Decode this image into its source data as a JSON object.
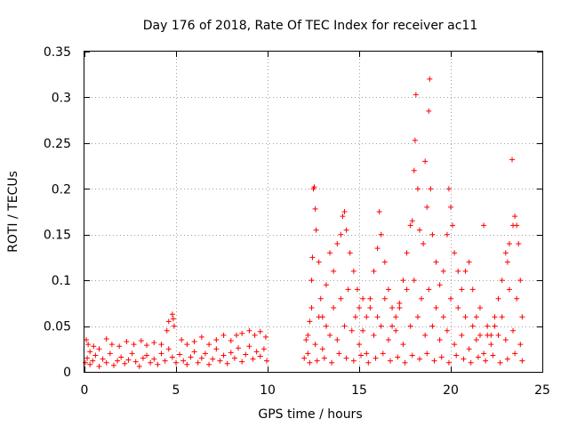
{
  "chart_data": {
    "type": "scatter",
    "title": "Day 176 of 2018, Rate Of TEC Index for receiver ac11",
    "xlabel": "GPS time / hours",
    "ylabel": "ROTI / TECUs",
    "xlim": [
      0,
      25
    ],
    "ylim": [
      0,
      0.35
    ],
    "xticks": [
      0,
      5,
      10,
      15,
      20,
      25
    ],
    "yticks": [
      0,
      0.05,
      0.1,
      0.15,
      0.2,
      0.25,
      0.3,
      0.35
    ],
    "xtick_labels": [
      "0",
      "5",
      "10",
      "15",
      "20",
      "25"
    ],
    "ytick_labels": [
      "0",
      "0.05",
      "0.1",
      "0.15",
      "0.2",
      "0.25",
      "0.3",
      "0.35"
    ],
    "grid": true,
    "marker": "+",
    "color": "#ff0000",
    "series": [
      {
        "name": "ROTI",
        "points": [
          [
            0.1,
            0.035
          ],
          [
            0.2,
            0.03
          ],
          [
            0.3,
            0.022
          ],
          [
            0.5,
            0.028
          ],
          [
            0.8,
            0.025
          ],
          [
            1.2,
            0.036
          ],
          [
            1.5,
            0.03
          ],
          [
            1.9,
            0.028
          ],
          [
            2.3,
            0.033
          ],
          [
            2.7,
            0.03
          ],
          [
            3.1,
            0.034
          ],
          [
            3.4,
            0.029
          ],
          [
            3.8,
            0.032
          ],
          [
            4.2,
            0.03
          ],
          [
            4.5,
            0.045
          ],
          [
            4.6,
            0.055
          ],
          [
            4.8,
            0.063
          ],
          [
            4.85,
            0.058
          ],
          [
            4.9,
            0.05
          ],
          [
            5.3,
            0.035
          ],
          [
            5.6,
            0.03
          ],
          [
            6.0,
            0.033
          ],
          [
            6.4,
            0.038
          ],
          [
            6.8,
            0.03
          ],
          [
            7.2,
            0.035
          ],
          [
            7.6,
            0.04
          ],
          [
            8.0,
            0.034
          ],
          [
            8.3,
            0.04
          ],
          [
            8.6,
            0.042
          ],
          [
            9.0,
            0.045
          ],
          [
            9.3,
            0.04
          ],
          [
            9.6,
            0.044
          ],
          [
            9.9,
            0.038
          ],
          [
            0.05,
            0.01
          ],
          [
            0.15,
            0.015
          ],
          [
            0.3,
            0.008
          ],
          [
            0.45,
            0.012
          ],
          [
            0.6,
            0.018
          ],
          [
            0.8,
            0.006
          ],
          [
            1.0,
            0.014
          ],
          [
            1.2,
            0.01
          ],
          [
            1.4,
            0.02
          ],
          [
            1.6,
            0.007
          ],
          [
            1.8,
            0.012
          ],
          [
            2.0,
            0.016
          ],
          [
            2.2,
            0.009
          ],
          [
            2.4,
            0.013
          ],
          [
            2.6,
            0.02
          ],
          [
            2.8,
            0.011
          ],
          [
            3.0,
            0.006
          ],
          [
            3.2,
            0.015
          ],
          [
            3.4,
            0.018
          ],
          [
            3.6,
            0.01
          ],
          [
            3.8,
            0.014
          ],
          [
            4.0,
            0.008
          ],
          [
            4.2,
            0.02
          ],
          [
            4.4,
            0.012
          ],
          [
            4.6,
            0.025
          ],
          [
            4.8,
            0.016
          ],
          [
            5.0,
            0.01
          ],
          [
            5.2,
            0.019
          ],
          [
            5.4,
            0.012
          ],
          [
            5.6,
            0.008
          ],
          [
            5.8,
            0.016
          ],
          [
            6.0,
            0.022
          ],
          [
            6.2,
            0.01
          ],
          [
            6.4,
            0.015
          ],
          [
            6.6,
            0.02
          ],
          [
            6.8,
            0.008
          ],
          [
            7.0,
            0.014
          ],
          [
            7.2,
            0.025
          ],
          [
            7.4,
            0.012
          ],
          [
            7.6,
            0.018
          ],
          [
            7.8,
            0.009
          ],
          [
            8.0,
            0.021
          ],
          [
            8.2,
            0.015
          ],
          [
            8.4,
            0.026
          ],
          [
            8.6,
            0.011
          ],
          [
            8.8,
            0.019
          ],
          [
            9.0,
            0.028
          ],
          [
            9.2,
            0.014
          ],
          [
            9.4,
            0.022
          ],
          [
            9.6,
            0.017
          ],
          [
            9.8,
            0.025
          ],
          [
            9.95,
            0.012
          ],
          [
            12.0,
            0.015
          ],
          [
            12.1,
            0.035
          ],
          [
            12.2,
            0.04
          ],
          [
            12.3,
            0.055
          ],
          [
            12.4,
            0.1
          ],
          [
            12.45,
            0.125
          ],
          [
            12.5,
            0.2
          ],
          [
            12.55,
            0.202
          ],
          [
            12.6,
            0.178
          ],
          [
            12.65,
            0.155
          ],
          [
            12.8,
            0.12
          ],
          [
            12.9,
            0.08
          ],
          [
            13.0,
            0.06
          ],
          [
            13.2,
            0.095
          ],
          [
            13.4,
            0.13
          ],
          [
            13.6,
            0.11
          ],
          [
            13.8,
            0.14
          ],
          [
            14.0,
            0.15
          ],
          [
            14.1,
            0.17
          ],
          [
            14.2,
            0.175
          ],
          [
            14.3,
            0.155
          ],
          [
            14.5,
            0.13
          ],
          [
            14.7,
            0.11
          ],
          [
            14.9,
            0.09
          ],
          [
            15.0,
            0.07
          ],
          [
            15.2,
            0.045
          ],
          [
            15.4,
            0.06
          ],
          [
            15.6,
            0.08
          ],
          [
            15.8,
            0.11
          ],
          [
            16.0,
            0.135
          ],
          [
            16.1,
            0.175
          ],
          [
            16.2,
            0.15
          ],
          [
            16.4,
            0.12
          ],
          [
            16.6,
            0.09
          ],
          [
            16.8,
            0.07
          ],
          [
            17.0,
            0.06
          ],
          [
            17.2,
            0.075
          ],
          [
            17.4,
            0.1
          ],
          [
            17.6,
            0.13
          ],
          [
            17.8,
            0.16
          ],
          [
            17.9,
            0.165
          ],
          [
            18.0,
            0.22
          ],
          [
            18.05,
            0.253
          ],
          [
            18.1,
            0.303
          ],
          [
            18.2,
            0.2
          ],
          [
            18.3,
            0.155
          ],
          [
            18.5,
            0.14
          ],
          [
            18.6,
            0.23
          ],
          [
            18.7,
            0.18
          ],
          [
            18.8,
            0.285
          ],
          [
            18.85,
            0.32
          ],
          [
            18.9,
            0.2
          ],
          [
            19.0,
            0.15
          ],
          [
            19.2,
            0.12
          ],
          [
            19.4,
            0.095
          ],
          [
            19.6,
            0.11
          ],
          [
            19.8,
            0.15
          ],
          [
            19.9,
            0.2
          ],
          [
            20.0,
            0.18
          ],
          [
            20.1,
            0.16
          ],
          [
            20.2,
            0.13
          ],
          [
            20.4,
            0.11
          ],
          [
            20.6,
            0.09
          ],
          [
            20.8,
            0.11
          ],
          [
            21.0,
            0.12
          ],
          [
            21.2,
            0.09
          ],
          [
            21.4,
            0.06
          ],
          [
            21.6,
            0.04
          ],
          [
            21.8,
            0.16
          ],
          [
            22.0,
            0.05
          ],
          [
            22.2,
            0.04
          ],
          [
            22.4,
            0.06
          ],
          [
            22.6,
            0.08
          ],
          [
            22.8,
            0.1
          ],
          [
            23.0,
            0.13
          ],
          [
            23.1,
            0.12
          ],
          [
            23.2,
            0.14
          ],
          [
            23.35,
            0.232
          ],
          [
            23.4,
            0.16
          ],
          [
            23.5,
            0.17
          ],
          [
            23.6,
            0.16
          ],
          [
            23.7,
            0.14
          ],
          [
            23.8,
            0.1
          ],
          [
            23.9,
            0.06
          ],
          [
            12.2,
            0.02
          ],
          [
            12.6,
            0.03
          ],
          [
            13.0,
            0.025
          ],
          [
            13.4,
            0.04
          ],
          [
            13.8,
            0.035
          ],
          [
            14.2,
            0.05
          ],
          [
            14.6,
            0.045
          ],
          [
            15.0,
            0.03
          ],
          [
            15.4,
            0.02
          ],
          [
            15.8,
            0.04
          ],
          [
            16.2,
            0.05
          ],
          [
            16.6,
            0.035
          ],
          [
            17.0,
            0.045
          ],
          [
            17.4,
            0.03
          ],
          [
            17.8,
            0.05
          ],
          [
            18.2,
            0.06
          ],
          [
            18.6,
            0.04
          ],
          [
            19.0,
            0.05
          ],
          [
            19.4,
            0.035
          ],
          [
            19.8,
            0.045
          ],
          [
            20.2,
            0.03
          ],
          [
            20.6,
            0.04
          ],
          [
            21.0,
            0.025
          ],
          [
            21.4,
            0.035
          ],
          [
            21.8,
            0.02
          ],
          [
            22.2,
            0.03
          ],
          [
            22.6,
            0.04
          ],
          [
            23.0,
            0.035
          ],
          [
            23.4,
            0.045
          ],
          [
            23.8,
            0.03
          ],
          [
            12.4,
            0.07
          ],
          [
            12.8,
            0.06
          ],
          [
            13.2,
            0.05
          ],
          [
            13.6,
            0.07
          ],
          [
            14.0,
            0.08
          ],
          [
            14.4,
            0.09
          ],
          [
            14.8,
            0.06
          ],
          [
            15.2,
            0.08
          ],
          [
            15.6,
            0.07
          ],
          [
            16.0,
            0.06
          ],
          [
            16.4,
            0.08
          ],
          [
            16.8,
            0.05
          ],
          [
            17.2,
            0.07
          ],
          [
            17.6,
            0.09
          ],
          [
            18.0,
            0.1
          ],
          [
            18.4,
            0.08
          ],
          [
            18.8,
            0.09
          ],
          [
            19.2,
            0.07
          ],
          [
            19.6,
            0.06
          ],
          [
            20.0,
            0.08
          ],
          [
            20.4,
            0.07
          ],
          [
            20.8,
            0.06
          ],
          [
            21.2,
            0.05
          ],
          [
            21.6,
            0.07
          ],
          [
            22.0,
            0.04
          ],
          [
            22.4,
            0.05
          ],
          [
            22.8,
            0.06
          ],
          [
            23.2,
            0.09
          ],
          [
            23.6,
            0.08
          ],
          [
            12.3,
            0.01
          ],
          [
            12.7,
            0.012
          ],
          [
            13.1,
            0.015
          ],
          [
            13.5,
            0.01
          ],
          [
            13.9,
            0.02
          ],
          [
            14.3,
            0.015
          ],
          [
            14.7,
            0.012
          ],
          [
            15.1,
            0.018
          ],
          [
            15.5,
            0.01
          ],
          [
            15.9,
            0.015
          ],
          [
            16.3,
            0.02
          ],
          [
            16.7,
            0.012
          ],
          [
            17.1,
            0.016
          ],
          [
            17.5,
            0.01
          ],
          [
            17.9,
            0.018
          ],
          [
            18.3,
            0.014
          ],
          [
            18.7,
            0.02
          ],
          [
            19.1,
            0.012
          ],
          [
            19.5,
            0.016
          ],
          [
            19.9,
            0.01
          ],
          [
            20.3,
            0.018
          ],
          [
            20.7,
            0.014
          ],
          [
            21.1,
            0.01
          ],
          [
            21.5,
            0.016
          ],
          [
            21.9,
            0.012
          ],
          [
            22.3,
            0.018
          ],
          [
            22.7,
            0.01
          ],
          [
            23.1,
            0.014
          ],
          [
            23.5,
            0.02
          ],
          [
            23.9,
            0.012
          ]
        ]
      }
    ]
  }
}
